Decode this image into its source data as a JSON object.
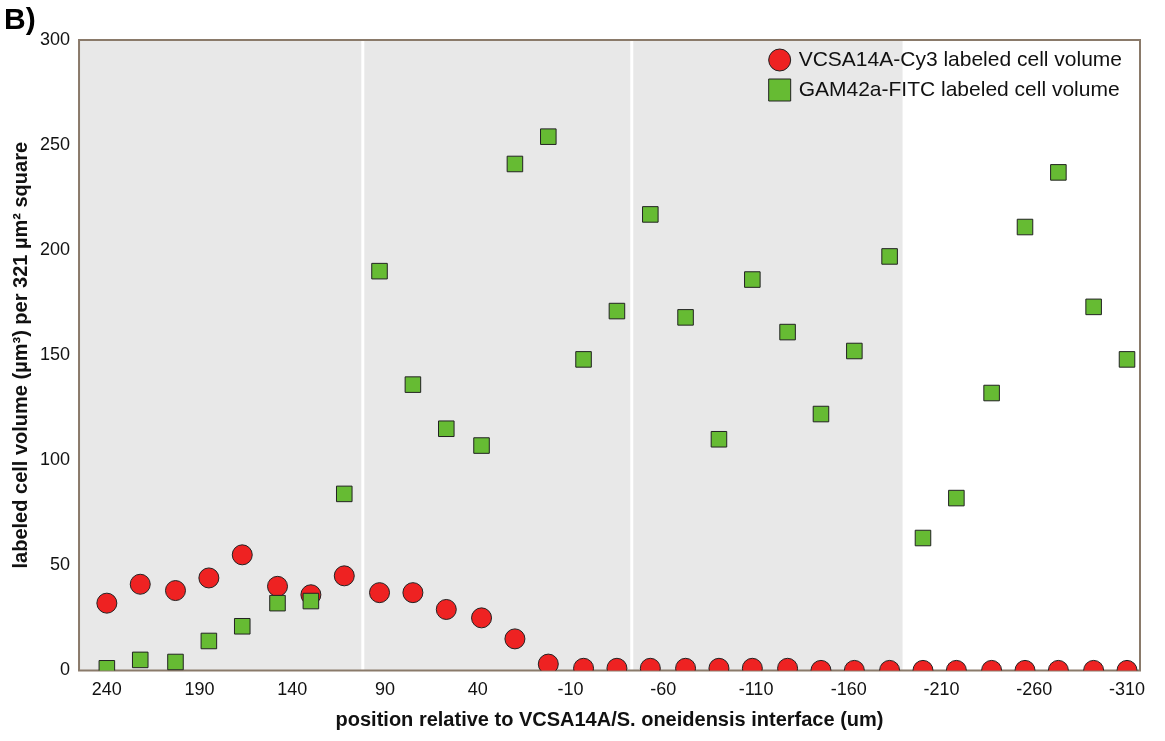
{
  "chart_data": {
    "type": "scatter",
    "xlabel": "position relative to VCSA14A/S. oneidensis interface (um)",
    "ylabel": "labeled cell volume (µm³) per 321 µm² square",
    "annotations": [
      "B)"
    ],
    "xlim": [
      255,
      -317
    ],
    "xticks": [
      240,
      190,
      140,
      90,
      40,
      -10,
      -60,
      -110,
      -160,
      -210,
      -260,
      -310
    ],
    "ylim": [
      0,
      300
    ],
    "yticks": [
      0,
      50,
      100,
      150,
      200,
      250,
      300
    ],
    "x": [
      240,
      222,
      203,
      185,
      167,
      148,
      130,
      112,
      93,
      75,
      57,
      38,
      20,
      2,
      -17,
      -35,
      -53,
      -72,
      -90,
      -108,
      -127,
      -145,
      -163,
      -182,
      -200,
      -218,
      -237,
      -255,
      -273,
      -292,
      -310
    ],
    "grid": false,
    "legend": "top right",
    "bands": [
      {
        "axis": "x",
        "from": 255,
        "to": -189,
        "color": "#e8e8e8"
      }
    ],
    "ref_lines": [
      {
        "axis": "x",
        "value": 102,
        "color": "#ffffff"
      },
      {
        "axis": "x",
        "value": -43,
        "color": "#ffffff"
      }
    ],
    "series": [
      {
        "name": "VCSA14A-Cy3 labeled cell volume",
        "color": "#ee2222",
        "marker": "circle",
        "values": [
          32,
          41,
          38,
          44,
          55,
          40,
          36,
          45,
          37,
          37,
          29,
          25,
          15,
          3,
          1,
          1,
          1,
          1,
          1,
          1,
          1,
          0,
          0,
          0,
          0,
          0,
          0,
          0,
          0,
          0,
          0
        ]
      },
      {
        "name": "GAM42a-FITC labeled cell volume",
        "color": "#66bb33",
        "marker": "square",
        "values": [
          1,
          5,
          4,
          14,
          21,
          32,
          33,
          84,
          190,
          136,
          115,
          107,
          241,
          254,
          148,
          171,
          217,
          168,
          110,
          186,
          161,
          122,
          152,
          197,
          63,
          82,
          132,
          211,
          237,
          173,
          148
        ]
      }
    ]
  }
}
